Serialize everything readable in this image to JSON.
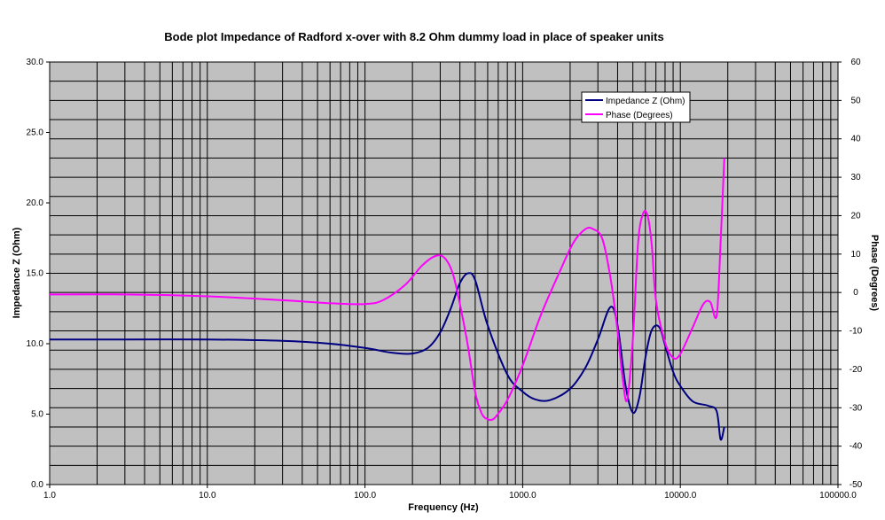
{
  "chart_data": {
    "type": "line",
    "title": "Bode plot Impedance of Radford x-over with 8.2 Ohm dummy load in place of speaker units",
    "xlabel": "Frequency (Hz)",
    "ylabel": "Impedance Z (Ohm)",
    "y2label": "Phase (Degrees)",
    "xscale": "log",
    "xlim": [
      1,
      100000
    ],
    "ylim": [
      0,
      30
    ],
    "y2lim": [
      -50,
      60
    ],
    "grid": true,
    "plot_background": "#c0c0c0",
    "legend_position": "top-right",
    "x_ticks": [
      "1.0",
      "10.0",
      "100.0",
      "1000.0",
      "10000.0",
      "100000.0"
    ],
    "y_ticks": [
      "0.0",
      "5.0",
      "10.0",
      "15.0",
      "20.0",
      "25.0",
      "30.0"
    ],
    "y2_ticks": [
      "-50",
      "-40",
      "-30",
      "-20",
      "-10",
      "0",
      "10",
      "20",
      "30",
      "40",
      "50",
      "60"
    ],
    "series": [
      {
        "name": "Impedance Z (Ohm)",
        "axis": "left",
        "color": "#000080",
        "x": [
          1,
          3,
          10,
          30,
          60,
          100,
          150,
          200,
          250,
          300,
          350,
          400,
          450,
          500,
          600,
          800,
          1000,
          1200,
          1500,
          2000,
          2500,
          3000,
          3600,
          4000,
          4500,
          5000,
          5500,
          6000,
          6500,
          7000,
          7500,
          8000,
          9000,
          10000,
          12000,
          15000,
          17000,
          18000,
          19000
        ],
        "values": [
          10.3,
          10.3,
          10.3,
          10.2,
          10.0,
          9.7,
          9.35,
          9.3,
          9.7,
          10.8,
          12.5,
          14.3,
          15.0,
          14.5,
          11.3,
          7.8,
          6.6,
          6.05,
          6.0,
          6.8,
          8.3,
          10.3,
          12.6,
          11.3,
          7.0,
          5.1,
          6.2,
          9.0,
          10.8,
          11.3,
          11.0,
          9.9,
          8.0,
          7.0,
          5.9,
          5.6,
          5.2,
          3.2,
          4.1
        ]
      },
      {
        "name": "Phase (Degrees)",
        "axis": "right",
        "color": "#ff00ff",
        "x": [
          1,
          3,
          10,
          30,
          60,
          100,
          130,
          180,
          230,
          280,
          320,
          360,
          400,
          450,
          500,
          550,
          600,
          650,
          700,
          800,
          1000,
          1300,
          1700,
          2100,
          2500,
          2800,
          3200,
          3600,
          4000,
          4300,
          4600,
          5000,
          5400,
          5800,
          6200,
          6600,
          7000,
          8000,
          9000,
          10000,
          12000,
          14000,
          15500,
          17000,
          18000,
          19000
        ],
        "values": [
          -0.5,
          -0.5,
          -1.0,
          -2.0,
          -2.8,
          -3.0,
          -2.0,
          2.0,
          7.0,
          9.5,
          9.0,
          5.0,
          -3.0,
          -14.0,
          -26.0,
          -31.5,
          -33.0,
          -33.0,
          -31.5,
          -28.0,
          -19.0,
          -6.0,
          5.0,
          13.0,
          16.5,
          16.5,
          14.0,
          4.0,
          -10.0,
          -22.0,
          -28.0,
          -12.0,
          13.0,
          20.5,
          20.0,
          12.0,
          -2.0,
          -13.0,
          -17.0,
          -16.0,
          -9.0,
          -3.0,
          -2.5,
          -6.0,
          13.0,
          35.0
        ]
      }
    ]
  }
}
